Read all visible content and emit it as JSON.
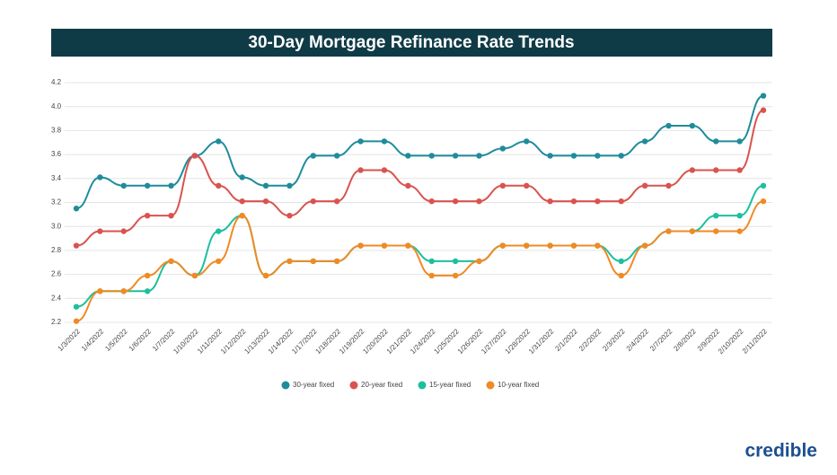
{
  "chart_data": {
    "type": "line",
    "title": "30-Day Mortgage Refinance Rate Trends",
    "brand": "credible",
    "categories": [
      "1/3/2022",
      "1/4/2022",
      "1/5/2022",
      "1/6/2022",
      "1/7/2022",
      "1/10/2022",
      "1/11/2022",
      "1/12/2022",
      "1/13/2022",
      "1/14/2022",
      "1/17/2022",
      "1/18/2022",
      "1/19/2022",
      "1/20/2022",
      "1/21/2022",
      "1/24/2022",
      "1/25/2022",
      "1/26/2022",
      "1/27/2022",
      "1/28/2022",
      "1/31/2022",
      "2/1/2022",
      "2/2/2022",
      "2/3/2022",
      "2/4/2022",
      "2/7/2022",
      "2/8/2022",
      "2/9/2022",
      "2/10/2022",
      "2/11/2022"
    ],
    "series": [
      {
        "name": "30-year fixed",
        "color": "#1f8c9b",
        "values": [
          3.15,
          3.41,
          3.34,
          3.34,
          3.34,
          3.59,
          3.71,
          3.41,
          3.34,
          3.34,
          3.59,
          3.59,
          3.71,
          3.71,
          3.59,
          3.59,
          3.59,
          3.59,
          3.65,
          3.71,
          3.59,
          3.59,
          3.59,
          3.59,
          3.71,
          3.84,
          3.84,
          3.71,
          3.71,
          4.09
        ]
      },
      {
        "name": "20-year fixed",
        "color": "#d9534f",
        "values": [
          2.84,
          2.96,
          2.96,
          3.09,
          3.09,
          3.59,
          3.34,
          3.21,
          3.21,
          3.09,
          3.21,
          3.21,
          3.47,
          3.47,
          3.34,
          3.21,
          3.21,
          3.21,
          3.34,
          3.34,
          3.21,
          3.21,
          3.21,
          3.21,
          3.34,
          3.34,
          3.47,
          3.47,
          3.47,
          3.97
        ]
      },
      {
        "name": "15-year fixed",
        "color": "#1dbf9f",
        "values": [
          2.33,
          2.46,
          2.46,
          2.46,
          2.71,
          2.59,
          2.96,
          3.09,
          2.59,
          2.71,
          2.71,
          2.71,
          2.84,
          2.84,
          2.84,
          2.71,
          2.71,
          2.71,
          2.84,
          2.84,
          2.84,
          2.84,
          2.84,
          2.71,
          2.84,
          2.96,
          2.96,
          3.09,
          3.09,
          3.34
        ]
      },
      {
        "name": "10-year fixed",
        "color": "#f08a24",
        "values": [
          2.21,
          2.46,
          2.46,
          2.59,
          2.71,
          2.59,
          2.71,
          3.09,
          2.59,
          2.71,
          2.71,
          2.71,
          2.84,
          2.84,
          2.84,
          2.59,
          2.59,
          2.71,
          2.84,
          2.84,
          2.84,
          2.84,
          2.84,
          2.59,
          2.84,
          2.96,
          2.96,
          2.96,
          2.96,
          3.21
        ]
      }
    ],
    "ylim": [
      2.2,
      4.2
    ],
    "yticks": [
      2.2,
      2.4,
      2.6,
      2.8,
      {
        "value": 3,
        "label": "3.0"
      },
      3.2,
      3.4,
      3.6,
      3.8,
      {
        "value": 4,
        "label": "4.0"
      },
      4.2
    ],
    "grid": true
  }
}
